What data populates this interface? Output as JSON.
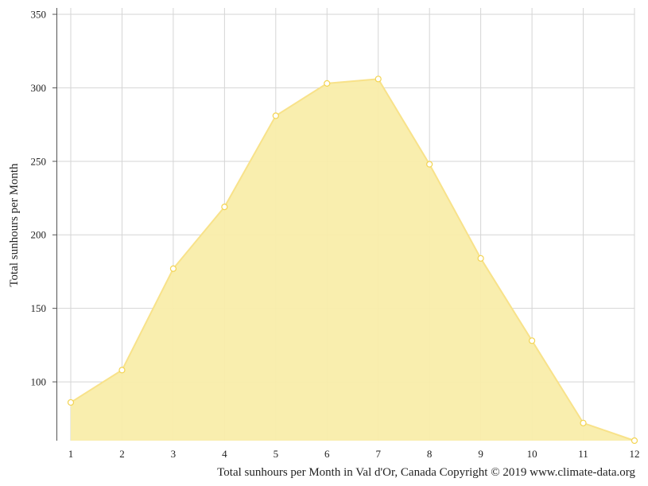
{
  "chart_data": {
    "type": "area",
    "x": [
      1,
      2,
      3,
      4,
      5,
      6,
      7,
      8,
      9,
      10,
      11,
      12
    ],
    "series": [
      {
        "values": [
          86,
          108,
          177,
          219,
          281,
          303,
          306,
          248,
          184,
          128,
          72,
          60
        ]
      }
    ],
    "ylabel": "Total sunhours per Month",
    "xlabel": "",
    "caption": "Total sunhours per Month in Val d'Or, Canada Copyright © 2019 www.climate-data.org",
    "x_ticks": [
      "1",
      "2",
      "3",
      "4",
      "5",
      "6",
      "7",
      "8",
      "9",
      "10",
      "11",
      "12"
    ],
    "y_ticks": [
      "100",
      "150",
      "200",
      "250",
      "300",
      "350"
    ],
    "y_tick_values": [
      100,
      150,
      200,
      250,
      300,
      350
    ],
    "ylim": [
      60,
      350
    ],
    "grid": true,
    "colors": {
      "fill": "#f9edaa",
      "line": "#f8e28a",
      "point_stroke": "#f3d452",
      "grid": "#d5d5d5",
      "axis": "#555555"
    }
  }
}
